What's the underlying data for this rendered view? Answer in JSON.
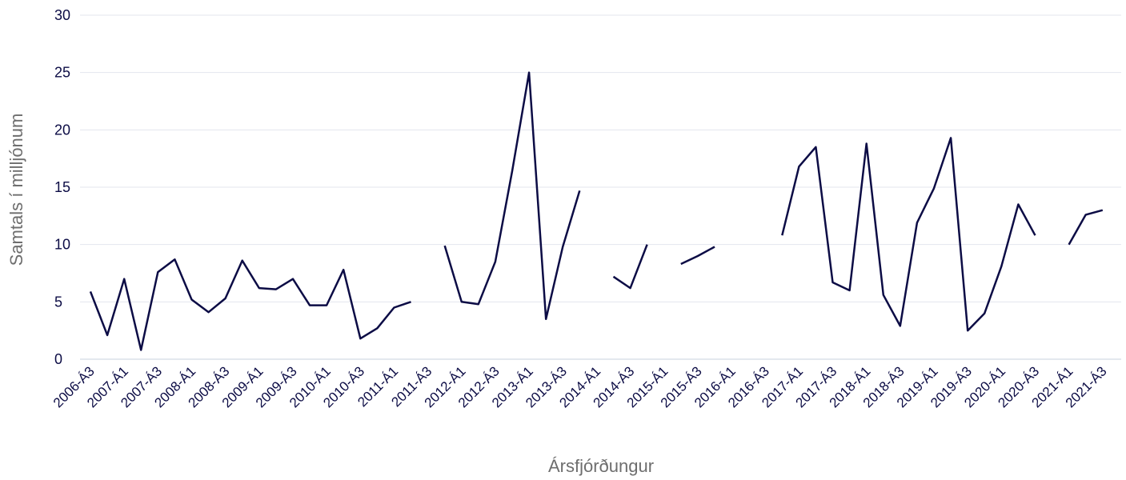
{
  "chart_data": {
    "type": "line",
    "title": "",
    "xlabel": "Ársfjórðungur",
    "ylabel": "Samtals í milljónum",
    "ylim": [
      0,
      30
    ],
    "yticks": [
      0,
      5,
      10,
      15,
      20,
      25,
      30
    ],
    "grid": true,
    "legend": "none",
    "colors": {
      "line": "#0c0c45",
      "grid": "#e3e6ee",
      "axis_text": "#0c0c45",
      "axis_title": "#6e6e6e"
    },
    "x": [
      "2006-Á3",
      "2006-Á4",
      "2007-Á1",
      "2007-Á2",
      "2007-Á3",
      "2007-Á4",
      "2008-Á1",
      "2008-Á2",
      "2008-Á3",
      "2008-Á4",
      "2009-Á1",
      "2009-Á2",
      "2009-Á3",
      "2009-Á4",
      "2010-Á1",
      "2010-Á2",
      "2010-Á3",
      "2010-Á4",
      "2011-Á1",
      "2011-Á2",
      "2011-Á3",
      "2011-Á4",
      "2012-Á1",
      "2012-Á2",
      "2012-Á3",
      "2012-Á4",
      "2013-Á1",
      "2013-Á2",
      "2013-Á3",
      "2013-Á4",
      "2014-Á1",
      "2014-Á2",
      "2014-Á3",
      "2014-Á4",
      "2015-Á1",
      "2015-Á2",
      "2015-Á3",
      "2015-Á4",
      "2016-Á1",
      "2016-Á2",
      "2016-Á3",
      "2016-Á4",
      "2017-Á1",
      "2017-Á2",
      "2017-Á3",
      "2017-Á4",
      "2018-Á1",
      "2018-Á2",
      "2018-Á3",
      "2018-Á4",
      "2019-Á1",
      "2019-Á2",
      "2019-Á3",
      "2019-Á4",
      "2020-Á1",
      "2020-Á2",
      "2020-Á3",
      "2020-Á4",
      "2021-Á1",
      "2021-Á2",
      "2021-Á3",
      "2021-Á4"
    ],
    "xtick_labels": [
      "2006-Á3",
      "2007-Á1",
      "2007-Á3",
      "2008-Á1",
      "2008-Á3",
      "2009-Á1",
      "2009-Á3",
      "2010-Á1",
      "2010-Á3",
      "2011-Á1",
      "2011-Á3",
      "2012-Á1",
      "2012-Á3",
      "2013-Á1",
      "2013-Á3",
      "2014-Á1",
      "2014-Á3",
      "2015-Á1",
      "2015-Á3",
      "2016-Á1",
      "2016-Á3",
      "2017-Á1",
      "2017-Á3",
      "2018-Á1",
      "2018-Á3",
      "2019-Á1",
      "2019-Á3",
      "2020-Á1",
      "2020-Á3",
      "2021-Á1",
      "2021-Á3"
    ],
    "series": [
      {
        "name": "",
        "values": [
          5.9,
          2.1,
          7.0,
          0.8,
          7.6,
          8.7,
          5.2,
          4.1,
          5.3,
          8.6,
          6.2,
          6.1,
          7.0,
          4.7,
          4.7,
          7.8,
          1.8,
          2.7,
          4.5,
          5.0,
          null,
          9.9,
          5.0,
          4.8,
          8.5,
          16.4,
          25.0,
          3.5,
          9.8,
          14.7,
          null,
          7.2,
          6.2,
          10.0,
          null,
          8.3,
          9.0,
          9.8,
          null,
          null,
          null,
          10.8,
          16.8,
          18.5,
          6.7,
          6.0,
          18.8,
          5.6,
          2.9,
          11.9,
          14.9,
          19.3,
          2.5,
          4.0,
          8.1,
          13.5,
          10.8,
          null,
          10.0,
          12.6,
          13.0,
          null
        ]
      }
    ]
  }
}
